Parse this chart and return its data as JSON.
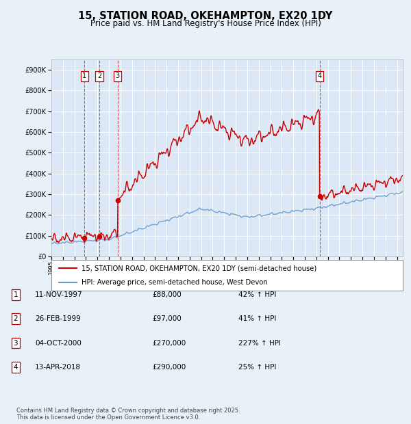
{
  "title": "15, STATION ROAD, OKEHAMPTON, EX20 1DY",
  "subtitle": "Price paid vs. HM Land Registry's House Price Index (HPI)",
  "legend_line1": "15, STATION ROAD, OKEHAMPTON, EX20 1DY (semi-detached house)",
  "legend_line2": "HPI: Average price, semi-detached house, West Devon",
  "footer": "Contains HM Land Registry data © Crown copyright and database right 2025.\nThis data is licensed under the Open Government Licence v3.0.",
  "transactions": [
    {
      "num": 1,
      "date": "11-NOV-1997",
      "price": "£88,000",
      "hpi": "42% ↑ HPI",
      "year": 1997.87
    },
    {
      "num": 2,
      "date": "26-FEB-1999",
      "price": "£97,000",
      "hpi": "41% ↑ HPI",
      "year": 1999.16
    },
    {
      "num": 3,
      "date": "04-OCT-2000",
      "price": "£270,000",
      "hpi": "227% ↑ HPI",
      "year": 2000.75
    },
    {
      "num": 4,
      "date": "13-APR-2018",
      "price": "£290,000",
      "hpi": "25% ↑ HPI",
      "year": 2018.28
    }
  ],
  "transaction_prices": [
    88000,
    97000,
    270000,
    290000
  ],
  "background_color": "#e8f0f8",
  "plot_bg_color": "#dce8f5",
  "red_color": "#cc0000",
  "blue_color": "#6699cc",
  "xlim": [
    1995,
    2025.5
  ],
  "ylim": [
    0,
    950000
  ],
  "yticks": [
    0,
    100000,
    200000,
    300000,
    400000,
    500000,
    600000,
    700000,
    800000,
    900000
  ]
}
